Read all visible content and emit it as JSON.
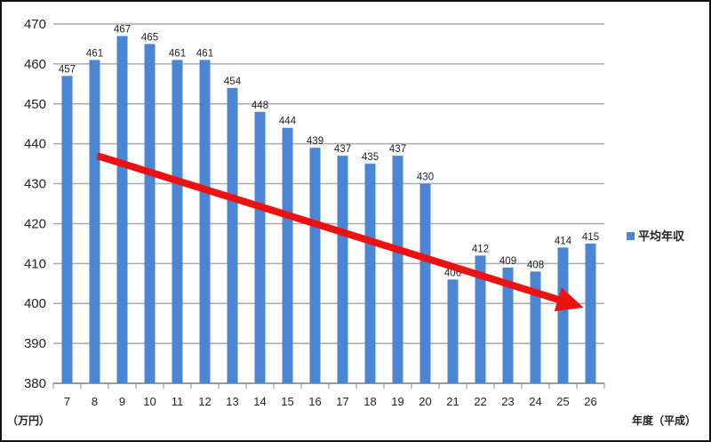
{
  "chart_data": {
    "type": "bar",
    "title": "",
    "xlabel": "年度（平成）",
    "ylabel": "（万円）",
    "ylim": [
      380,
      470
    ],
    "yticks": [
      380,
      390,
      400,
      410,
      420,
      430,
      440,
      450,
      460,
      470
    ],
    "grid": true,
    "legend": {
      "position": "right",
      "entries": [
        "平均年収"
      ]
    },
    "categories": [
      "7",
      "8",
      "9",
      "10",
      "11",
      "12",
      "13",
      "14",
      "15",
      "16",
      "17",
      "18",
      "19",
      "20",
      "21",
      "22",
      "23",
      "24",
      "25",
      "26"
    ],
    "series": [
      {
        "name": "平均年収",
        "color": "#4a86d4",
        "values": [
          457,
          461,
          467,
          465,
          461,
          461,
          454,
          448,
          444,
          439,
          437,
          435,
          437,
          430,
          406,
          412,
          409,
          408,
          414,
          415
        ]
      }
    ],
    "annotations": [
      {
        "type": "arrow",
        "color": "#ee1111",
        "from": {
          "category": "8",
          "value": 437
        },
        "to": {
          "category": "26",
          "value": 399
        },
        "meaning": "downward trend"
      }
    ]
  }
}
